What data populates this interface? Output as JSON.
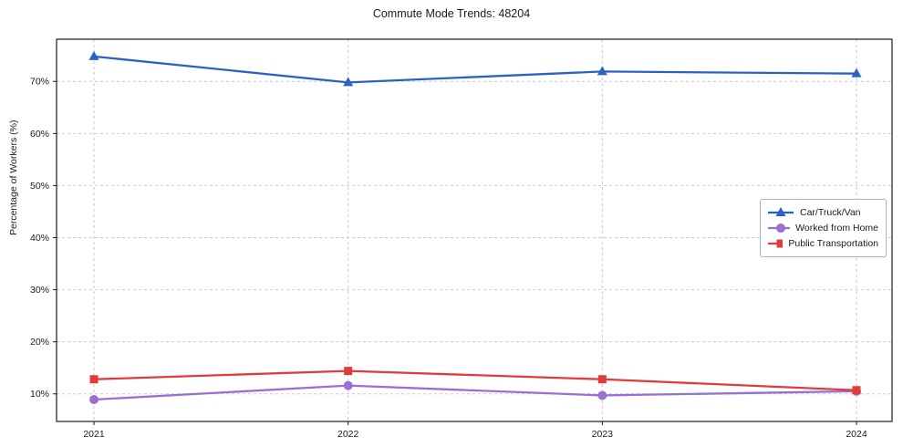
{
  "chart_data": {
    "type": "line",
    "title": "Commute Mode Trends: 48204",
    "xlabel": "",
    "ylabel": "Percentage of Workers (%)",
    "categories": [
      "2021",
      "2022",
      "2023",
      "2024"
    ],
    "series": [
      {
        "name": "Car/Truck/Van",
        "color": "#2a62c4",
        "marker": "triangle",
        "values": [
          74.8,
          69.8,
          71.9,
          71.5
        ]
      },
      {
        "name": "Worked from Home",
        "color": "#9a6fd4",
        "marker": "circle",
        "values": [
          8.9,
          11.6,
          9.7,
          10.5
        ]
      },
      {
        "name": "Public Transportation",
        "color": "#e03c3c",
        "marker": "square",
        "values": [
          12.8,
          14.4,
          12.8,
          10.7
        ]
      }
    ],
    "yticks": {
      "values": [
        10,
        20,
        30,
        40,
        50,
        60,
        70
      ],
      "labels": [
        "10%",
        "20%",
        "30%",
        "40%",
        "50%",
        "60%",
        "70%"
      ]
    },
    "ylim": [
      4.7,
      78.1
    ],
    "grid": "dashed-both-axes",
    "grid_color": "#c9c9c9",
    "legend_position": "center-right",
    "spine_color": "#1a1a1a"
  }
}
